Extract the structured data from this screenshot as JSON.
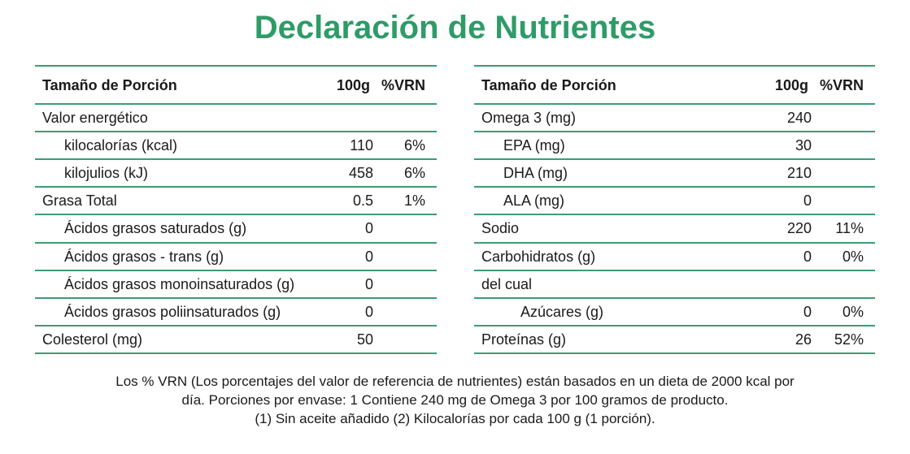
{
  "title": "Declaración de Nutrientes",
  "left": {
    "header": {
      "label": "Tamaño de Porción",
      "amount": "100g",
      "vrn": "%VRN"
    },
    "rows": [
      {
        "label": "Valor energético"
      },
      {
        "label": "kilocalorías (kcal)",
        "amount": "110",
        "vrn": "6%"
      },
      {
        "label": "kilojulios (kJ)",
        "amount": "458",
        "vrn": "6%"
      },
      {
        "label": "Grasa Total",
        "amount": "0.5",
        "vrn": "1%"
      },
      {
        "label": "Ácidos grasos saturados (g)",
        "amount": "0"
      },
      {
        "label": "Ácidos grasos - trans (g)",
        "amount": "0"
      },
      {
        "label": "Ácidos grasos monoinsaturados (g)",
        "amount": "0"
      },
      {
        "label": "Ácidos grasos poliinsaturados (g)",
        "amount": "0"
      },
      {
        "label": "Colesterol (mg)",
        "amount": "50"
      }
    ]
  },
  "right": {
    "header": {
      "label": "Tamaño de Porción",
      "amount": "100g",
      "vrn": "%VRN"
    },
    "rows": [
      {
        "label": "Omega 3 (mg)",
        "amount": "240"
      },
      {
        "label": "EPA (mg)",
        "amount": "30"
      },
      {
        "label": "DHA (mg)",
        "amount": "210"
      },
      {
        "label": "ALA (mg)",
        "amount": "0"
      },
      {
        "label": "Sodio",
        "amount": "220",
        "vrn": "11%"
      },
      {
        "label": "Carbohidratos (g)",
        "amount": "0",
        "vrn": "0%"
      },
      {
        "label": "del cual"
      },
      {
        "label": "Azúcares (g)",
        "amount": "0",
        "vrn": "0%"
      },
      {
        "label": "Proteínas (g)",
        "amount": "26",
        "vrn": "52%"
      }
    ]
  },
  "footnote": [
    "Los % VRN (Los porcentajes del valor de referencia de nutrientes) están basados en un dieta de 2000 kcal por",
    "día. Porciones por envase: 1 Contiene 240 mg de Omega 3 por 100 gramos de producto.",
    "(1) Sin aceite añadido (2) Kilocalorías por cada 100 g (1 porción)."
  ]
}
